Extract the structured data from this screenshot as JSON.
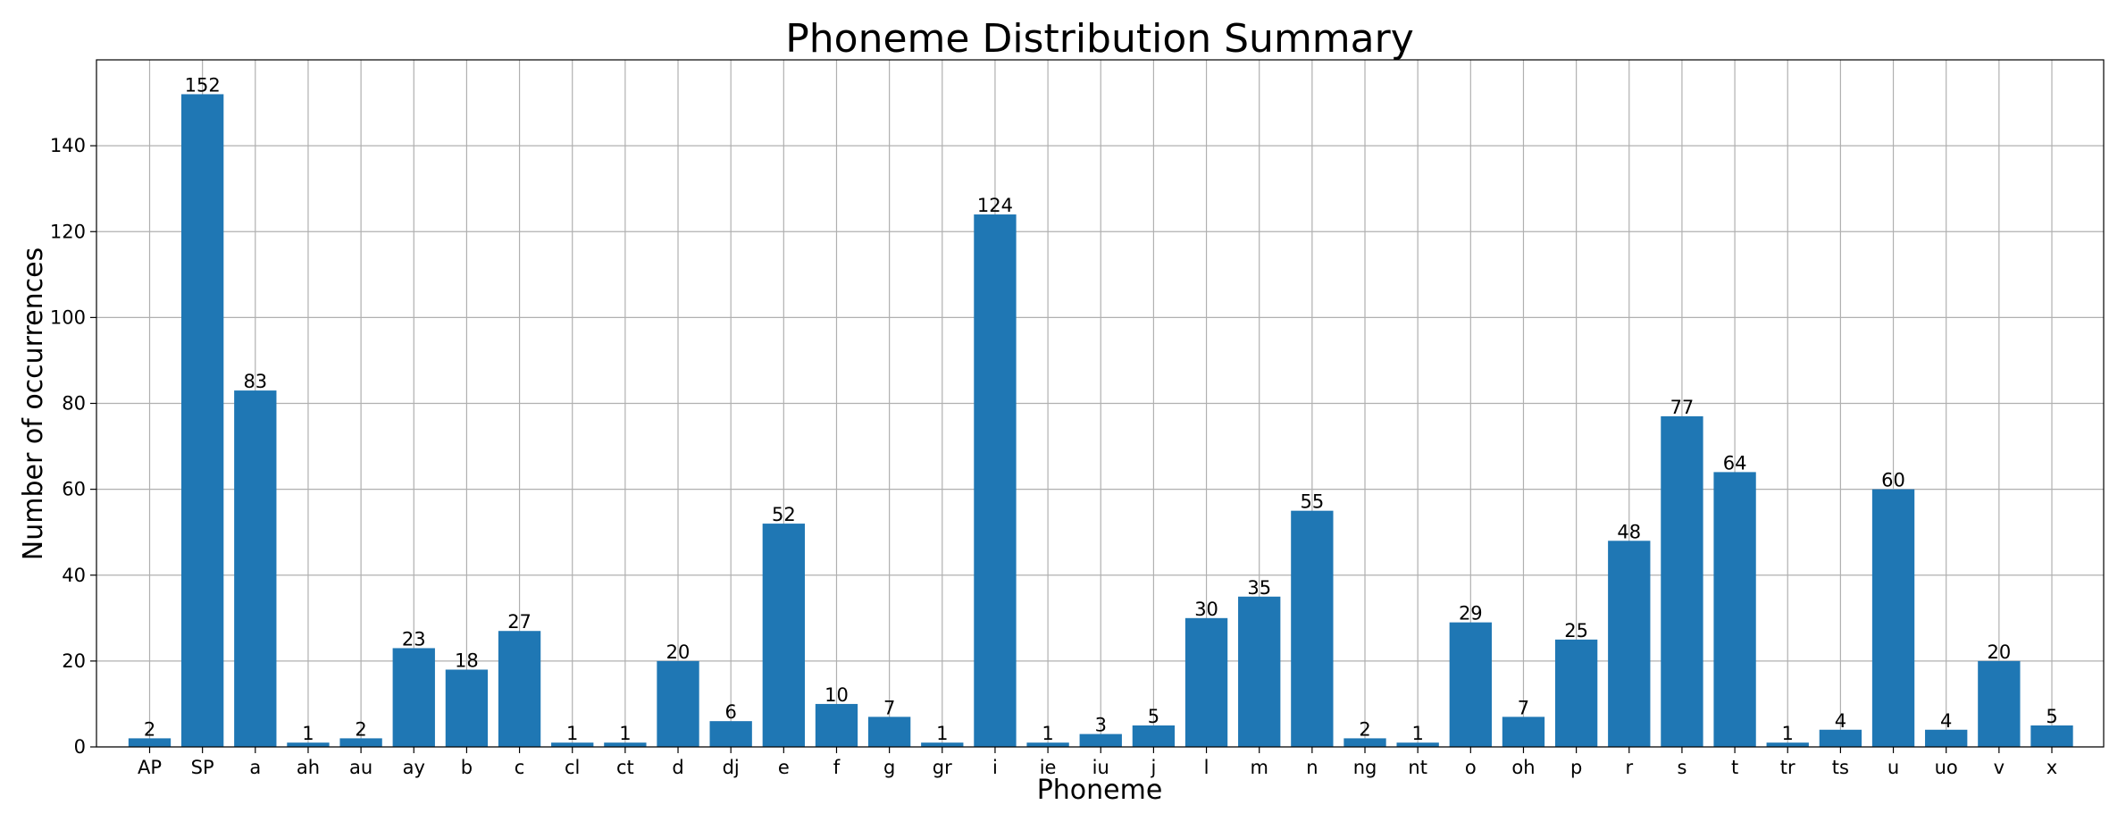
{
  "chart_data": {
    "type": "bar",
    "title": "Phoneme Distribution Summary",
    "xlabel": "Phoneme",
    "ylabel": "Number of occurrences",
    "categories": [
      "AP",
      "SP",
      "a",
      "ah",
      "au",
      "ay",
      "b",
      "c",
      "cl",
      "ct",
      "d",
      "dj",
      "e",
      "f",
      "g",
      "gr",
      "i",
      "ie",
      "iu",
      "j",
      "l",
      "m",
      "n",
      "ng",
      "nt",
      "o",
      "oh",
      "p",
      "r",
      "s",
      "t",
      "tr",
      "ts",
      "u",
      "uo",
      "v",
      "x"
    ],
    "values": [
      2,
      152,
      83,
      1,
      2,
      23,
      18,
      27,
      1,
      1,
      20,
      6,
      52,
      10,
      7,
      1,
      124,
      1,
      3,
      5,
      30,
      35,
      55,
      2,
      1,
      29,
      7,
      25,
      48,
      77,
      64,
      1,
      4,
      60,
      4,
      20,
      5
    ],
    "ylim": [
      0,
      160
    ],
    "yticks": [
      0,
      20,
      40,
      60,
      80,
      100,
      120,
      140
    ],
    "grid": true,
    "bar_color": "#1f77b4",
    "data_labels": true
  }
}
